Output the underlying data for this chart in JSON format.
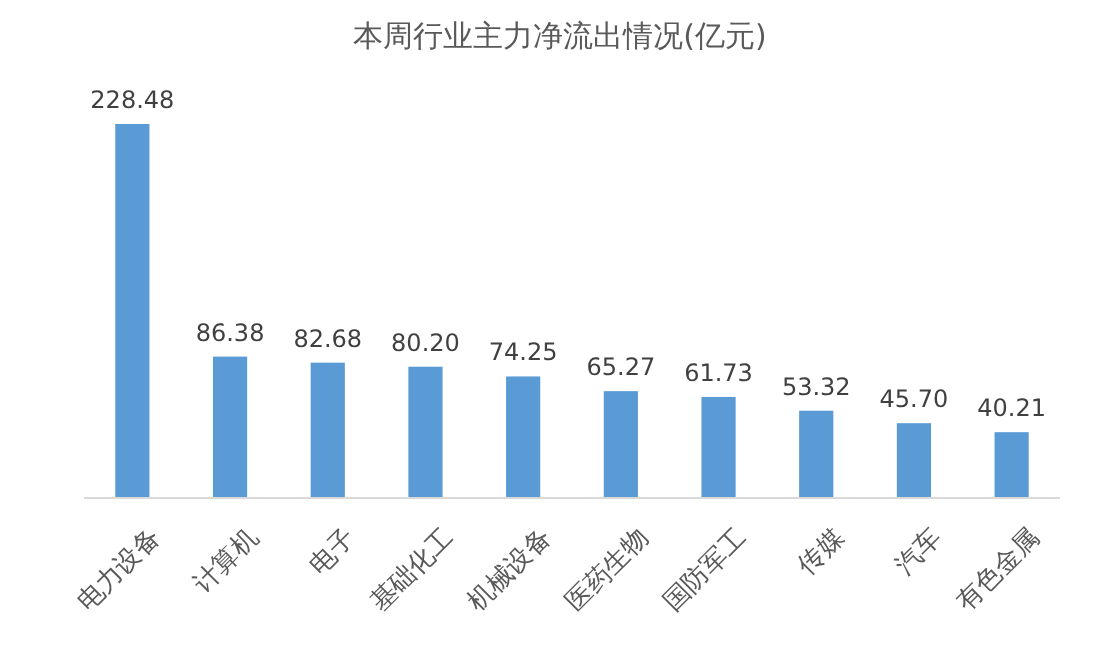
{
  "chart_data": {
    "type": "bar",
    "title": "本周行业主力净流出情况(亿元)",
    "categories": [
      "电力设备",
      "计算机",
      "电子",
      "基础化工",
      "机械设备",
      "医药生物",
      "国防军工",
      "传媒",
      "汽车",
      "有色金属"
    ],
    "values": [
      228.48,
      86.38,
      82.68,
      80.2,
      74.25,
      65.27,
      61.73,
      53.32,
      45.7,
      40.21
    ],
    "value_labels": [
      "228.48",
      "86.38",
      "82.68",
      "80.20",
      "74.25",
      "65.27",
      "61.73",
      "53.32",
      "45.70",
      "40.21"
    ],
    "color": "#5b9bd5"
  }
}
